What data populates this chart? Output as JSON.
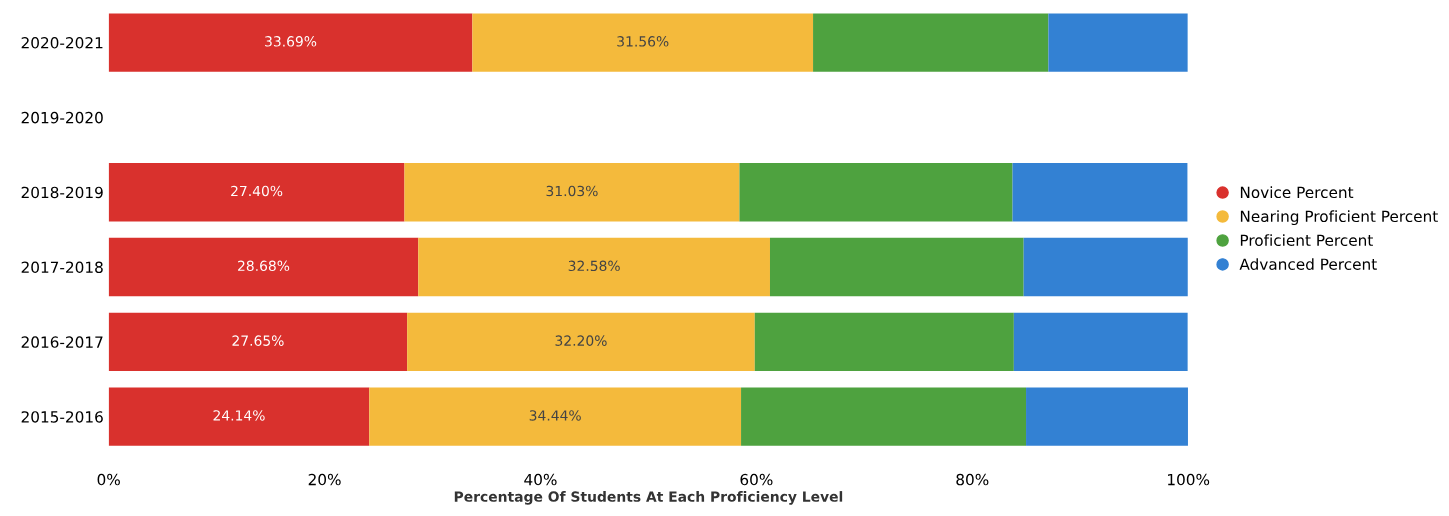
{
  "chart_data": {
    "type": "bar",
    "orientation": "horizontal",
    "stacked": true,
    "categories": [
      "2020-2021",
      "2019-2020",
      "2018-2019",
      "2017-2018",
      "2016-2017",
      "2015-2016"
    ],
    "series": [
      {
        "name": "Novice Percent",
        "color": "#d9312d",
        "values": [
          33.69,
          null,
          27.4,
          28.68,
          27.65,
          24.14
        ],
        "value_labels": [
          "33.69%",
          null,
          "27.40%",
          "28.68%",
          "27.65%",
          "24.14%"
        ]
      },
      {
        "name": "Nearing Proficient Percent",
        "color": "#f4ba3c",
        "values": [
          31.56,
          null,
          31.03,
          32.58,
          32.2,
          34.44
        ],
        "value_labels": [
          "31.56%",
          null,
          "31.03%",
          "32.58%",
          "32.20%",
          "34.44%"
        ]
      },
      {
        "name": "Proficient Percent",
        "color": "#4ea23f",
        "values": [
          21.8,
          null,
          25.3,
          23.5,
          24.0,
          26.4
        ],
        "value_labels": [
          null,
          null,
          null,
          null,
          null,
          null
        ]
      },
      {
        "name": "Advanced Percent",
        "color": "#3381d3",
        "values": [
          12.9,
          null,
          16.2,
          15.2,
          16.1,
          15.0
        ],
        "value_labels": [
          null,
          null,
          null,
          null,
          null,
          null
        ]
      }
    ],
    "xlabel": "Percentage Of Students At Each Proficiency Level",
    "xlim": [
      0,
      100
    ],
    "xticks": [
      {
        "value": 0,
        "label": "0%"
      },
      {
        "value": 20,
        "label": "20%"
      },
      {
        "value": 40,
        "label": "40%"
      },
      {
        "value": 60,
        "label": "60%"
      },
      {
        "value": 80,
        "label": "80%"
      },
      {
        "value": 100,
        "label": "100%"
      }
    ],
    "legend": "right",
    "marker": "circle",
    "grid": false
  }
}
